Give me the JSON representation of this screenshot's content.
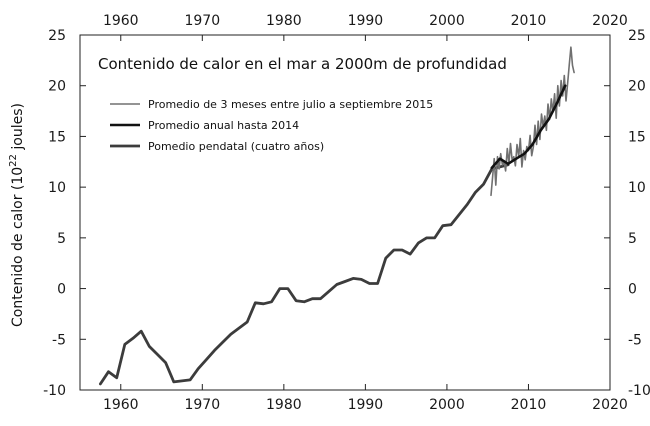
{
  "chart_data": {
    "type": "line",
    "title": "Contenido de calor en el mar a 2000m de profundidad",
    "ylabel": "Contenido de calor (10²² joules)",
    "xlabel": "",
    "xlim": [
      1955,
      2020
    ],
    "ylim": [
      -10,
      25
    ],
    "x_ticks": [
      1960,
      1970,
      1980,
      1990,
      2000,
      2010,
      2020
    ],
    "y_ticks": [
      -10,
      -5,
      0,
      5,
      10,
      15,
      20,
      25
    ],
    "grid": false,
    "legend_position": "top-left",
    "series": [
      {
        "name": "Promedio de 3 meses entre julio a septiembre 2015",
        "color": "#707070",
        "x": [
          2005.4,
          2005.6,
          2005.8,
          2006.0,
          2006.2,
          2006.4,
          2006.6,
          2006.8,
          2007.0,
          2007.2,
          2007.4,
          2007.6,
          2007.8,
          2008.0,
          2008.2,
          2008.4,
          2008.6,
          2008.8,
          2009.0,
          2009.2,
          2009.4,
          2009.6,
          2009.8,
          2010.0,
          2010.2,
          2010.4,
          2010.6,
          2010.8,
          2011.0,
          2011.2,
          2011.4,
          2011.6,
          2011.8,
          2012.0,
          2012.2,
          2012.4,
          2012.6,
          2012.8,
          2013.0,
          2013.2,
          2013.4,
          2013.6,
          2013.8,
          2014.0,
          2014.2,
          2014.4,
          2014.6,
          2014.8,
          2015.0,
          2015.2,
          2015.4,
          2015.6
        ],
        "values": [
          9.2,
          11.0,
          12.8,
          10.2,
          13.0,
          11.8,
          13.3,
          12.2,
          12.6,
          11.6,
          13.8,
          12.3,
          14.3,
          12.6,
          13.0,
          12.1,
          14.2,
          13.0,
          14.8,
          12.0,
          13.6,
          12.7,
          14.0,
          13.6,
          15.1,
          13.1,
          14.0,
          16.1,
          14.2,
          16.5,
          14.7,
          17.2,
          16.0,
          17.0,
          15.6,
          18.2,
          16.7,
          18.7,
          17.4,
          19.2,
          16.8,
          20.0,
          18.0,
          20.5,
          19.0,
          21.0,
          18.5,
          20.2,
          22.0,
          23.8,
          22.0,
          21.3
        ]
      },
      {
        "name": "Promedio anual hasta 2014",
        "color": "#111111",
        "x": [
          2005.5,
          2006.5,
          2007.5,
          2008.5,
          2009.5,
          2010.5,
          2011.5,
          2012.5,
          2013.5,
          2014.5
        ],
        "values": [
          11.9,
          12.8,
          12.3,
          12.8,
          13.3,
          14.2,
          15.6,
          16.7,
          18.3,
          20.0
        ]
      },
      {
        "name": "Pomedio pendatal (cuatro años)",
        "color": "#3c3c3c",
        "x": [
          1957.5,
          1958.5,
          1959.5,
          1960.5,
          1961.5,
          1962.5,
          1963.5,
          1964.5,
          1965.5,
          1966.5,
          1967.5,
          1968.5,
          1969.5,
          1970.5,
          1971.5,
          1972.5,
          1973.5,
          1974.5,
          1975.5,
          1976.5,
          1977.5,
          1978.5,
          1979.5,
          1980.5,
          1981.5,
          1982.5,
          1983.5,
          1984.5,
          1985.5,
          1986.5,
          1987.5,
          1988.5,
          1989.5,
          1990.5,
          1991.5,
          1992.5,
          1993.5,
          1994.5,
          1995.5,
          1996.5,
          1997.5,
          1998.5,
          1999.5,
          2000.5,
          2001.5,
          2002.5,
          2003.5,
          2004.5,
          2005.5,
          2006.5,
          2007.5
        ],
        "values": [
          -9.4,
          -8.2,
          -8.8,
          -5.5,
          -4.9,
          -4.2,
          -5.7,
          -6.5,
          -7.3,
          -9.2,
          -9.1,
          -9.0,
          -7.9,
          -7.0,
          -6.1,
          -5.3,
          -4.5,
          -3.9,
          -3.3,
          -1.4,
          -1.5,
          -1.3,
          0.0,
          0.0,
          -1.2,
          -1.3,
          -1.0,
          -1.0,
          -0.3,
          0.4,
          0.7,
          1.0,
          0.9,
          0.5,
          0.5,
          3.0,
          3.8,
          3.8,
          3.4,
          4.5,
          5.0,
          5.0,
          6.2,
          6.3,
          7.3,
          8.3,
          9.5,
          10.3,
          11.8,
          12.0,
          12.2
        ]
      }
    ]
  }
}
